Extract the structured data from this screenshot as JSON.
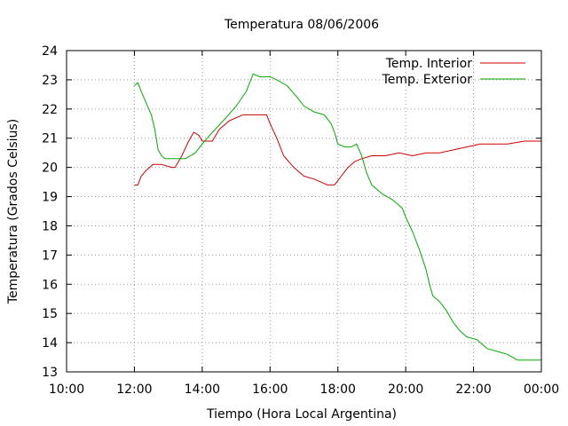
{
  "chart_data": {
    "type": "line",
    "title": "Temperatura 08/06/2006",
    "xlabel": "Tiempo (Hora Local Argentina)",
    "ylabel": "Temperatura (Grados Celsius)",
    "x_unit": "hours",
    "xlim": [
      10,
      24
    ],
    "ylim": [
      13,
      24
    ],
    "x_ticks": [
      10,
      12,
      14,
      16,
      18,
      20,
      22,
      24
    ],
    "x_tick_labels": [
      "10:00",
      "12:00",
      "14:00",
      "16:00",
      "18:00",
      "20:00",
      "22:00",
      "00:00"
    ],
    "y_ticks": [
      13,
      14,
      15,
      16,
      17,
      18,
      19,
      20,
      21,
      22,
      23,
      24
    ],
    "y_tick_labels": [
      "13",
      "14",
      "15",
      "16",
      "17",
      "18",
      "19",
      "20",
      "21",
      "22",
      "23",
      "24"
    ],
    "grid": true,
    "legend_position": "top-right",
    "series": [
      {
        "name": "Temp. Interior",
        "color": "#cc0000",
        "x": [
          12.0,
          12.1,
          12.2,
          12.35,
          12.55,
          12.8,
          13.1,
          13.2,
          13.4,
          13.6,
          13.75,
          13.9,
          14.0,
          14.3,
          14.5,
          14.8,
          15.2,
          15.5,
          15.9,
          16.0,
          16.2,
          16.4,
          16.7,
          17.0,
          17.3,
          17.7,
          17.9,
          18.1,
          18.3,
          18.5,
          18.7,
          19.0,
          19.4,
          19.8,
          20.2,
          20.6,
          21.0,
          21.4,
          21.8,
          22.2,
          22.6,
          23.0,
          23.5,
          24.0
        ],
        "y": [
          19.4,
          19.4,
          19.7,
          19.9,
          20.1,
          20.1,
          20.0,
          20.0,
          20.4,
          20.9,
          21.2,
          21.1,
          20.9,
          20.9,
          21.3,
          21.6,
          21.8,
          21.8,
          21.8,
          21.5,
          21.0,
          20.4,
          20.0,
          19.7,
          19.6,
          19.4,
          19.4,
          19.7,
          20.0,
          20.2,
          20.3,
          20.4,
          20.4,
          20.5,
          20.4,
          20.5,
          20.5,
          20.6,
          20.7,
          20.8,
          20.8,
          20.8,
          20.9,
          20.9
        ]
      },
      {
        "name": "Temp. Exterior",
        "color": "#00aa00",
        "x": [
          12.0,
          12.1,
          12.2,
          12.35,
          12.5,
          12.6,
          12.7,
          12.8,
          12.9,
          13.0,
          13.2,
          13.5,
          13.8,
          14.0,
          14.3,
          14.7,
          15.0,
          15.3,
          15.5,
          15.7,
          16.0,
          16.2,
          16.5,
          16.8,
          17.0,
          17.3,
          17.6,
          17.8,
          17.9,
          18.0,
          18.2,
          18.4,
          18.55,
          18.7,
          18.85,
          19.0,
          19.3,
          19.6,
          19.9,
          20.0,
          20.2,
          20.4,
          20.6,
          20.7,
          20.8,
          21.0,
          21.2,
          21.4,
          21.6,
          21.8,
          22.1,
          22.4,
          22.7,
          23.0,
          23.3,
          23.6,
          24.0
        ],
        "y": [
          22.8,
          22.9,
          22.6,
          22.2,
          21.8,
          21.3,
          20.6,
          20.4,
          20.3,
          20.3,
          20.3,
          20.3,
          20.5,
          20.8,
          21.2,
          21.7,
          22.1,
          22.6,
          23.2,
          23.1,
          23.1,
          23.0,
          22.8,
          22.4,
          22.1,
          21.9,
          21.8,
          21.5,
          21.2,
          20.8,
          20.7,
          20.7,
          20.8,
          20.4,
          19.8,
          19.4,
          19.1,
          18.9,
          18.6,
          18.3,
          17.8,
          17.2,
          16.5,
          16.0,
          15.6,
          15.4,
          15.1,
          14.7,
          14.4,
          14.2,
          14.1,
          13.8,
          13.7,
          13.6,
          13.4,
          13.4,
          13.4
        ]
      }
    ]
  }
}
